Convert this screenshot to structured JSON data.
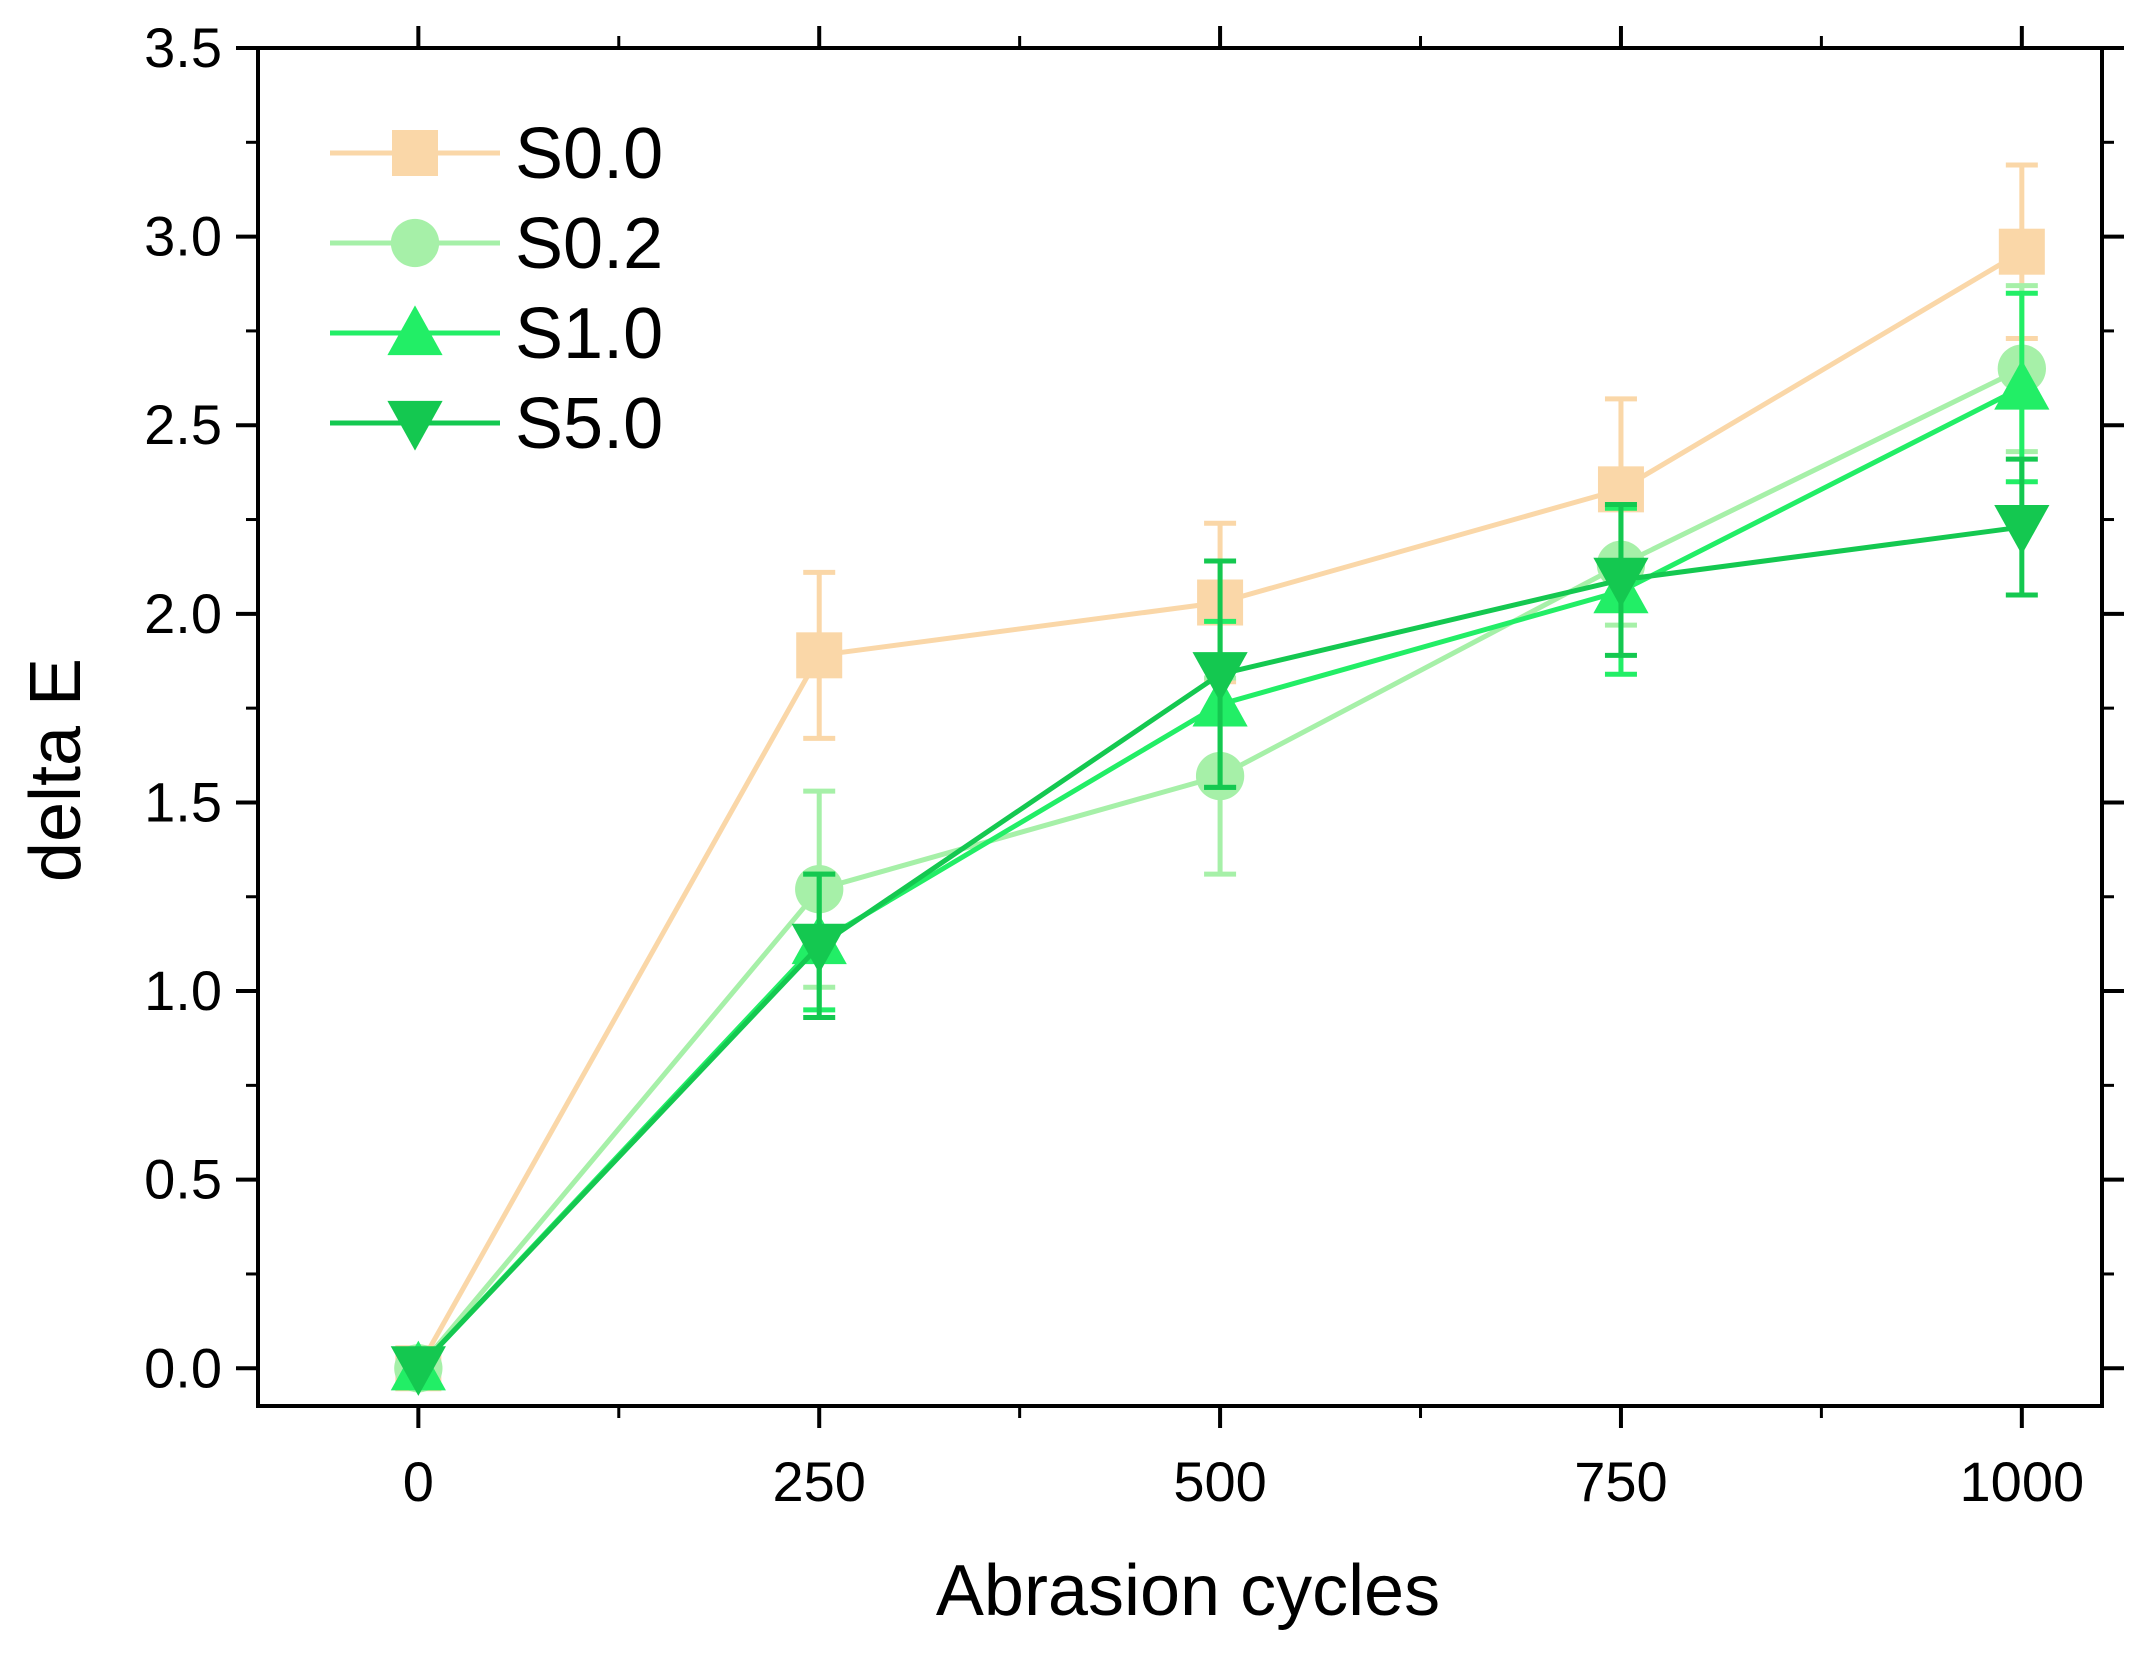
{
  "chart_data": {
    "type": "line",
    "title": "",
    "xlabel": "Abrasion cycles",
    "ylabel": "delta E",
    "xlim": [
      -100,
      1050
    ],
    "ylim": [
      -0.1,
      3.5
    ],
    "x_ticks": [
      0,
      250,
      500,
      750,
      1000
    ],
    "x_tick_labels": [
      "0",
      "250",
      "500",
      "750",
      "1000"
    ],
    "y_ticks": [
      0.0,
      0.5,
      1.0,
      1.5,
      2.0,
      2.5,
      3.0,
      3.5
    ],
    "y_tick_labels": [
      "0.0",
      "0.5",
      "1.0",
      "1.5",
      "2.0",
      "2.5",
      "3.0",
      "3.5"
    ],
    "grid": false,
    "legend_position": "top-left",
    "x": [
      0,
      250,
      500,
      750,
      1000
    ],
    "series": [
      {
        "name": "S0.0",
        "marker": "square",
        "color": "#FAD7A8",
        "values": [
          0.0,
          1.89,
          2.03,
          2.33,
          2.96
        ],
        "error": [
          0.0,
          0.22,
          0.21,
          0.24,
          0.23
        ]
      },
      {
        "name": "S0.2",
        "marker": "circle",
        "color": "#A6F0A8",
        "values": [
          0.0,
          1.27,
          1.57,
          2.13,
          2.65
        ],
        "error": [
          0.0,
          0.26,
          0.26,
          0.16,
          0.22
        ]
      },
      {
        "name": "S1.0",
        "marker": "triangle-up",
        "color": "#22EE66",
        "values": [
          0.0,
          1.13,
          1.76,
          2.06,
          2.6
        ],
        "error": [
          0.0,
          0.18,
          0.22,
          0.22,
          0.25
        ]
      },
      {
        "name": "S5.0",
        "marker": "triangle-down",
        "color": "#14C850",
        "values": [
          0.0,
          1.12,
          1.84,
          2.09,
          2.23
        ],
        "error": [
          0.0,
          0.19,
          0.3,
          0.2,
          0.18
        ]
      }
    ]
  }
}
